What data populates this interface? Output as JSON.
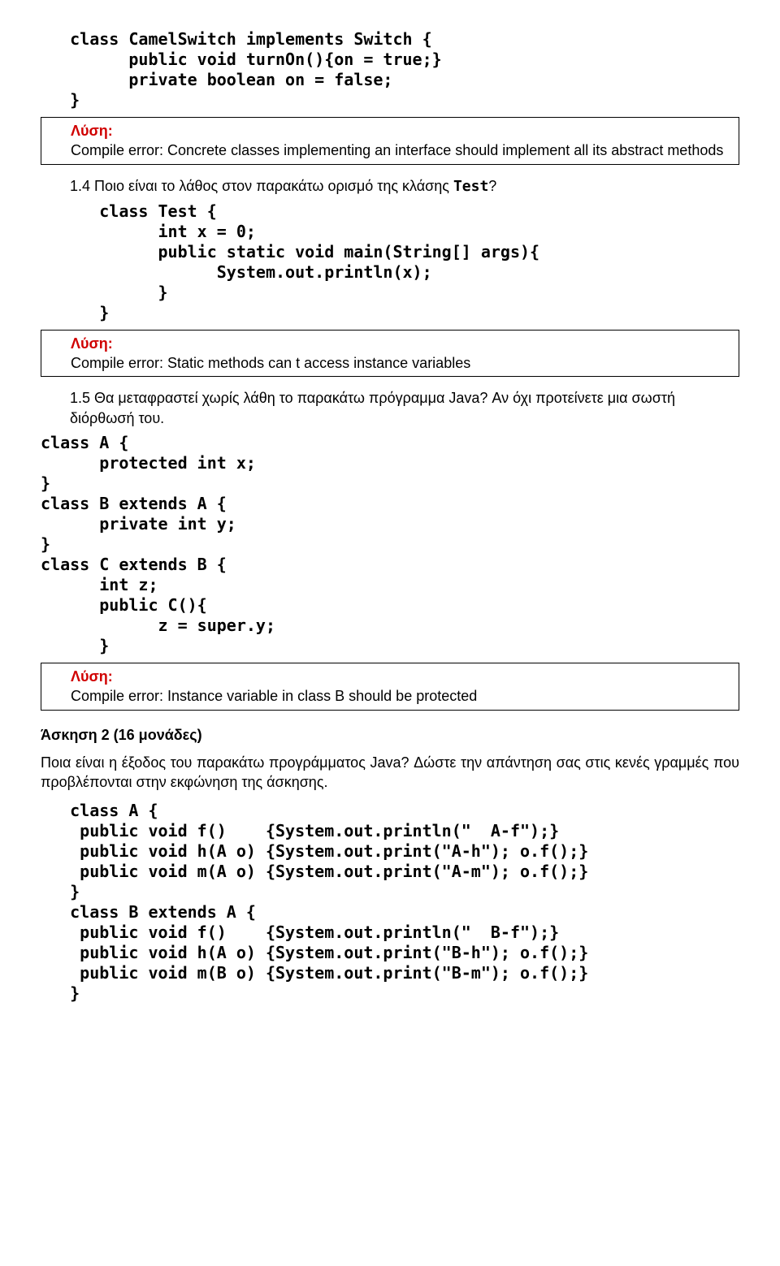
{
  "q13": {
    "code": "   class CamelSwitch implements Switch {\n         public void turnOn(){on = true;}\n         private boolean on = false;\n   }",
    "solution_label": "Λύση:",
    "solution_text": "Compile error: Concrete classes implementing an interface should implement all its abstract methods"
  },
  "q14": {
    "prompt_prefix": "1.4 Ποιο είναι το λάθος στον παρακάτω ορισμό της κλάσης ",
    "prompt_class": "Test",
    "prompt_suffix": "?",
    "code": "      class Test {\n            int x = 0;\n            public static void main(String[] args){\n                  System.out.println(x);\n            }\n      }",
    "solution_label": "Λύση:",
    "solution_text": "Compile error: Static methods can t access instance variables"
  },
  "q15": {
    "prompt": "1.5 Θα μεταφραστεί χωρίς λάθη το παρακάτω πρόγραμμα Java? Αν όχι προτείνετε μια σωστή διόρθωσή του.",
    "code": "class A {\n      protected int x;\n}\nclass B extends A {\n      private int y;\n}\nclass C extends B {\n      int z;\n      public C(){\n            z = super.y;\n      }",
    "solution_label": "Λύση:",
    "solution_text": "Compile error: Instance variable in class B should be protected"
  },
  "ex2": {
    "title": "Άσκηση 2 (16 μονάδες)",
    "para": "Ποια είναι η έξοδος του παρακάτω προγράμματος Java? Δώστε την απάντηση σας στις κενές γραμμές που προβλέπονται στην εκφώνηση της άσκησης.",
    "code": "   class A {\n    public void f()    {System.out.println(\"  A-f\");}\n    public void h(A o) {System.out.print(\"A-h\"); o.f();}\n    public void m(A o) {System.out.print(\"A-m\"); o.f();}\n   }\n   class B extends A {\n    public void f()    {System.out.println(\"  B-f\");}\n    public void h(A o) {System.out.print(\"B-h\"); o.f();}\n    public void m(B o) {System.out.print(\"B-m\"); o.f();}\n   }"
  },
  "colors": {
    "solution_red": "#d00000",
    "border": "#000000",
    "text": "#000000",
    "bg": "#ffffff"
  },
  "fonts": {
    "body_family": "Verdana",
    "body_size_pt": 14,
    "code_family": "DejaVu Sans Mono",
    "code_size_pt": 15,
    "code_weight": "bold"
  }
}
